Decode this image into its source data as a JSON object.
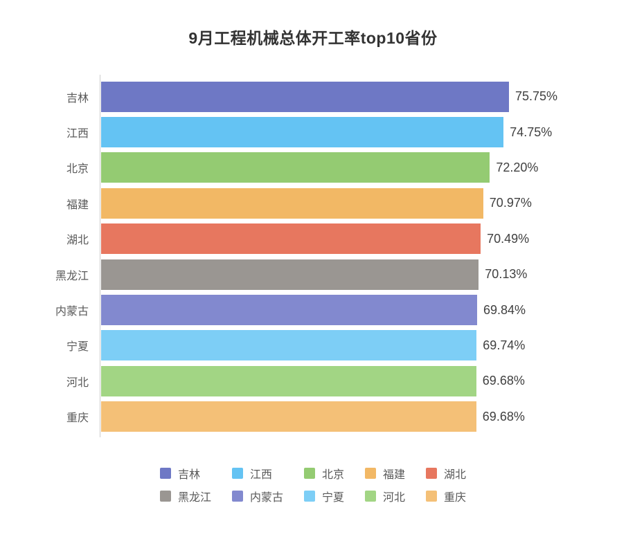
{
  "chart_data": {
    "type": "bar",
    "orientation": "horizontal",
    "title": "9月工程机械总体开工率top10省份",
    "categories": [
      "吉林",
      "江西",
      "北京",
      "福建",
      "湖北",
      "黑龙江",
      "内蒙古",
      "宁夏",
      "河北",
      "重庆"
    ],
    "values": [
      75.75,
      74.75,
      72.2,
      70.97,
      70.49,
      70.13,
      69.84,
      69.74,
      69.68,
      69.68
    ],
    "value_labels": [
      "75.75%",
      "74.75%",
      "72.20%",
      "70.97%",
      "70.49%",
      "70.13%",
      "69.84%",
      "69.74%",
      "69.68%",
      "69.68%"
    ],
    "colors": [
      "#6E78C5",
      "#64C3F3",
      "#94CB72",
      "#F2B865",
      "#E7775F",
      "#9A9692",
      "#8289CF",
      "#7DCEF6",
      "#A2D584",
      "#F4C077"
    ],
    "xlim": [
      0,
      80
    ],
    "grid": false,
    "axis_line_color": "#cccccc",
    "legend_position": "bottom",
    "legend": [
      "吉林",
      "江西",
      "北京",
      "福建",
      "湖北",
      "黑龙江",
      "内蒙古",
      "宁夏",
      "河北",
      "重庆"
    ]
  }
}
